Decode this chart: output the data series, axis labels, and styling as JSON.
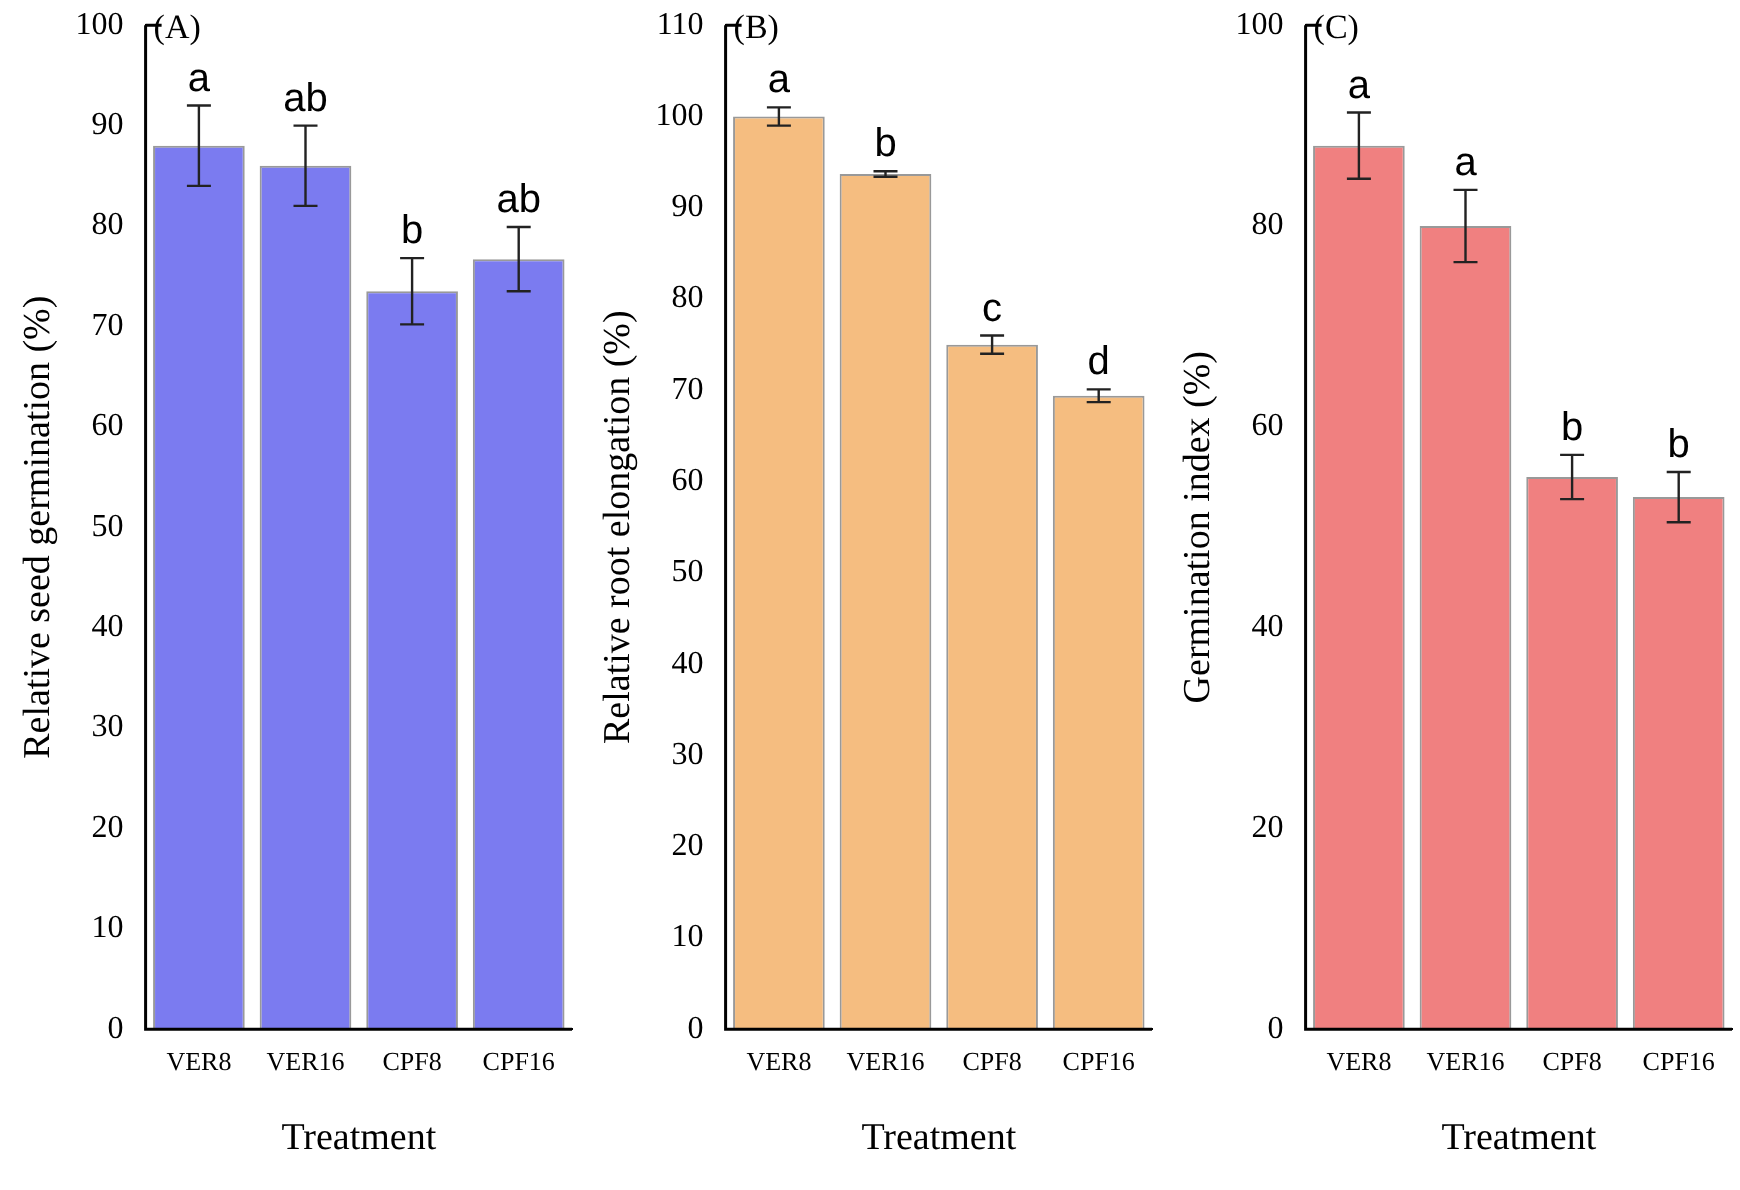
{
  "chart_data": [
    {
      "type": "bar",
      "title": "(A)",
      "xlabel": "Treatment",
      "ylabel": "Relative seed germination (%)",
      "categories": [
        "VER8",
        "VER16",
        "CPF8",
        "CPF16"
      ],
      "values": [
        88,
        86,
        73.5,
        76.7
      ],
      "errors": [
        4,
        4,
        3.3,
        3.2
      ],
      "color": "#7b7bf0",
      "ylim": [
        0,
        100
      ],
      "yticks": [
        0,
        10,
        20,
        30,
        40,
        50,
        60,
        70,
        80,
        90,
        100
      ],
      "grid": false,
      "legend": false,
      "annotations": [
        {
          "text": "a",
          "x": "VER8",
          "y": 92
        },
        {
          "text": "ab",
          "x": "VER16",
          "y": 90
        },
        {
          "text": "b",
          "x": "CPF8",
          "y": 76.8
        },
        {
          "text": "ab",
          "x": "CPF16",
          "y": 79.9
        }
      ]
    },
    {
      "type": "bar",
      "title": "(B)",
      "xlabel": "Treatment",
      "ylabel": "Relative root elongation (%)",
      "categories": [
        "VER8",
        "VER16",
        "CPF8",
        "CPF16"
      ],
      "values": [
        100,
        93.7,
        75,
        69.4
      ],
      "errors": [
        1,
        0.3,
        1,
        0.7
      ],
      "color": "#f5bd80",
      "ylim": [
        0,
        110
      ],
      "yticks": [
        0,
        10,
        20,
        30,
        40,
        50,
        60,
        70,
        80,
        90,
        100,
        110
      ],
      "grid": false,
      "legend": false,
      "annotations": [
        {
          "text": "a",
          "x": "VER8",
          "y": 101
        },
        {
          "text": "b",
          "x": "VER16",
          "y": 94
        },
        {
          "text": "c",
          "x": "CPF8",
          "y": 76
        },
        {
          "text": "d",
          "x": "CPF16",
          "y": 70.1
        }
      ]
    },
    {
      "type": "bar",
      "title": "(C)",
      "xlabel": "Treatment",
      "ylabel": "Germination index (%)",
      "categories": [
        "VER8",
        "VER16",
        "CPF8",
        "CPF16"
      ],
      "values": [
        88,
        80,
        55,
        53
      ],
      "errors": [
        3.3,
        3.6,
        2.2,
        2.5
      ],
      "color": "#f08080",
      "ylim": [
        0,
        100
      ],
      "yticks": [
        0,
        20,
        40,
        60,
        80,
        100
      ],
      "grid": false,
      "legend": false,
      "annotations": [
        {
          "text": "a",
          "x": "VER8",
          "y": 91.3
        },
        {
          "text": "a",
          "x": "VER16",
          "y": 83.6
        },
        {
          "text": "b",
          "x": "CPF8",
          "y": 57.2
        },
        {
          "text": "b",
          "x": "CPF16",
          "y": 55.5
        }
      ]
    }
  ]
}
